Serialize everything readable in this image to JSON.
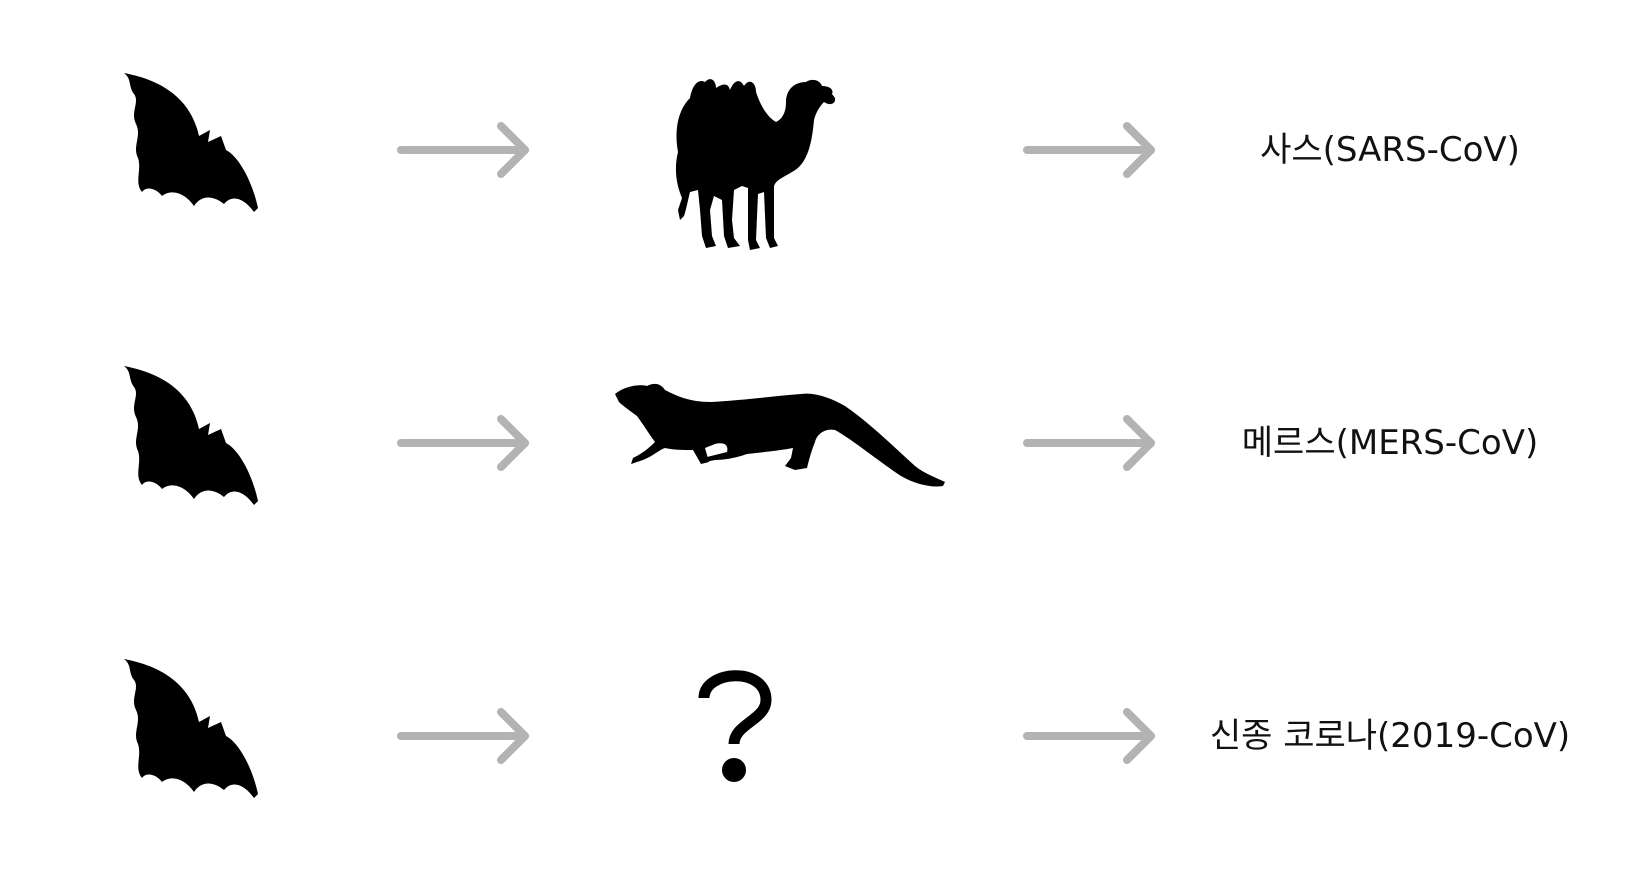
{
  "colors": {
    "silhouette": "#000000",
    "arrow": "#b3b3b3",
    "text": "#111111",
    "background": "#ffffff"
  },
  "rows": [
    {
      "source_icon": "bat-icon",
      "host_icon": "camel-icon",
      "label": "사스(SARS-CoV)"
    },
    {
      "source_icon": "bat-icon",
      "host_icon": "civet-icon",
      "label": "메르스(MERS-CoV)"
    },
    {
      "source_icon": "bat-icon",
      "host_icon": "question-mark-icon",
      "label": "신종 코로나(2019-CoV)"
    }
  ]
}
